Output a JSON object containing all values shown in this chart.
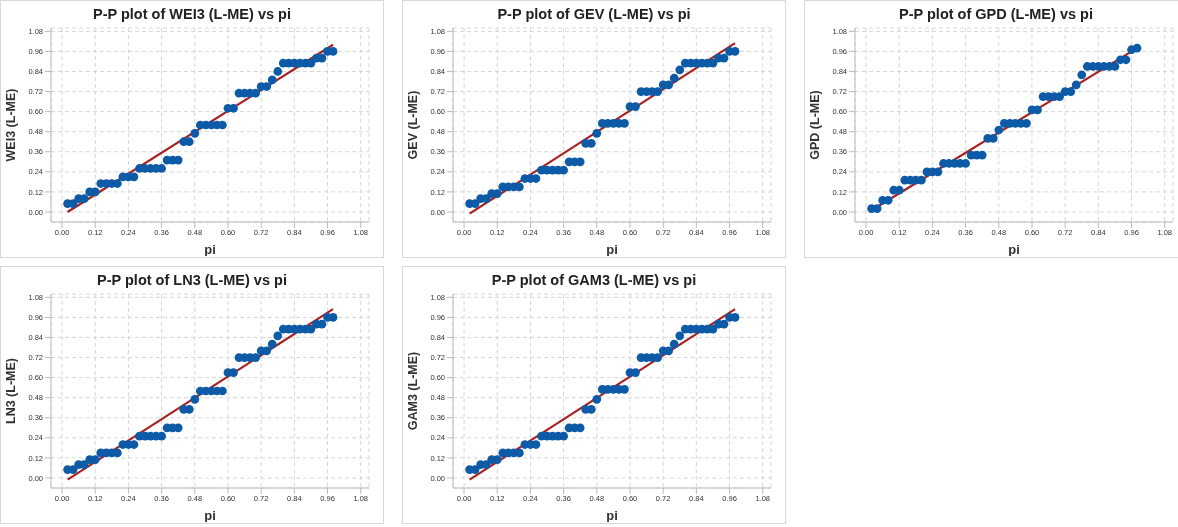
{
  "chart_data": [
    {
      "type": "scatter",
      "title": "P-P plot of WEI3 (L-ME) vs pi",
      "xlabel": "pi",
      "ylabel": "WEI3 (L-ME)",
      "grid": true,
      "xlim": [
        -0.04,
        1.11
      ],
      "ylim": [
        -0.06,
        1.1
      ],
      "xticks": [
        {
          "value": 0,
          "label": "0.00"
        },
        {
          "value": 0.12,
          "label": "0.12"
        },
        {
          "value": 0.24,
          "label": "0.24"
        },
        {
          "value": 0.36,
          "label": "0.36"
        },
        {
          "value": 0.48,
          "label": "0.48"
        },
        {
          "value": 0.6,
          "label": "0.60"
        },
        {
          "value": 0.72,
          "label": "0.72"
        },
        {
          "value": 0.84,
          "label": "0.84"
        },
        {
          "value": 0.96,
          "label": "0.96"
        },
        {
          "value": 1.08,
          "label": "1.08"
        }
      ],
      "yticks": [
        {
          "value": 0,
          "label": "0.00"
        },
        {
          "value": 0.12,
          "label": "0.12"
        },
        {
          "value": 0.24,
          "label": "0.24"
        },
        {
          "value": 0.36,
          "label": "0.36"
        },
        {
          "value": 0.48,
          "label": "0.48"
        },
        {
          "value": 0.6,
          "label": "0.60"
        },
        {
          "value": 0.72,
          "label": "0.72"
        },
        {
          "value": 0.84,
          "label": "0.84"
        },
        {
          "value": 0.96,
          "label": "0.96"
        },
        {
          "value": 1.08,
          "label": "1.08"
        }
      ],
      "series": [
        {
          "marker": "circle",
          "color": "#0d5aa7",
          "x": [
            0.02,
            0.04,
            0.06,
            0.08,
            0.1,
            0.12,
            0.14,
            0.16,
            0.18,
            0.2,
            0.22,
            0.24,
            0.26,
            0.28,
            0.3,
            0.32,
            0.34,
            0.36,
            0.38,
            0.4,
            0.42,
            0.44,
            0.46,
            0.48,
            0.5,
            0.52,
            0.54,
            0.56,
            0.58,
            0.6,
            0.62,
            0.64,
            0.66,
            0.68,
            0.7,
            0.72,
            0.74,
            0.76,
            0.78,
            0.8,
            0.82,
            0.84,
            0.86,
            0.88,
            0.9,
            0.92,
            0.94,
            0.96,
            0.98
          ],
          "values": [
            0.05,
            0.05,
            0.08,
            0.08,
            0.12,
            0.12,
            0.17,
            0.17,
            0.17,
            0.17,
            0.21,
            0.21,
            0.21,
            0.26,
            0.26,
            0.26,
            0.26,
            0.26,
            0.31,
            0.31,
            0.31,
            0.42,
            0.42,
            0.47,
            0.52,
            0.52,
            0.52,
            0.52,
            0.52,
            0.62,
            0.62,
            0.71,
            0.71,
            0.71,
            0.71,
            0.75,
            0.75,
            0.79,
            0.84,
            0.89,
            0.89,
            0.89,
            0.89,
            0.89,
            0.89,
            0.92,
            0.92,
            0.96,
            0.96
          ]
        },
        {
          "type": "line",
          "marker": "none",
          "color": "#a82020",
          "x": [
            0.02,
            0.98
          ],
          "values": [
            0,
            1
          ]
        }
      ]
    },
    {
      "type": "scatter",
      "title": "P-P plot of GEV (L-ME) vs pi",
      "xlabel": "pi",
      "ylabel": "GEV (L-ME)",
      "grid": true,
      "xlim": [
        -0.04,
        1.11
      ],
      "ylim": [
        -0.06,
        1.1
      ],
      "xticks": [
        {
          "value": 0,
          "label": "0.00"
        },
        {
          "value": 0.12,
          "label": "0.12"
        },
        {
          "value": 0.24,
          "label": "0.24"
        },
        {
          "value": 0.36,
          "label": "0.36"
        },
        {
          "value": 0.48,
          "label": "0.48"
        },
        {
          "value": 0.6,
          "label": "0.60"
        },
        {
          "value": 0.72,
          "label": "0.72"
        },
        {
          "value": 0.84,
          "label": "0.84"
        },
        {
          "value": 0.96,
          "label": "0.96"
        },
        {
          "value": 1.08,
          "label": "1.08"
        }
      ],
      "yticks": [
        {
          "value": 0,
          "label": "0.00"
        },
        {
          "value": 0.12,
          "label": "0.12"
        },
        {
          "value": 0.24,
          "label": "0.24"
        },
        {
          "value": 0.36,
          "label": "0.36"
        },
        {
          "value": 0.48,
          "label": "0.48"
        },
        {
          "value": 0.6,
          "label": "0.60"
        },
        {
          "value": 0.72,
          "label": "0.72"
        },
        {
          "value": 0.84,
          "label": "0.84"
        },
        {
          "value": 0.96,
          "label": "0.96"
        },
        {
          "value": 1.08,
          "label": "1.08"
        }
      ],
      "series": [
        {
          "color": "#0d5aa7",
          "x": [
            0.02,
            0.04,
            0.06,
            0.08,
            0.1,
            0.12,
            0.14,
            0.16,
            0.18,
            0.2,
            0.22,
            0.24,
            0.26,
            0.28,
            0.3,
            0.32,
            0.34,
            0.36,
            0.38,
            0.4,
            0.42,
            0.44,
            0.46,
            0.48,
            0.5,
            0.52,
            0.54,
            0.56,
            0.58,
            0.6,
            0.62,
            0.64,
            0.66,
            0.68,
            0.7,
            0.72,
            0.74,
            0.76,
            0.78,
            0.8,
            0.82,
            0.84,
            0.86,
            0.88,
            0.9,
            0.92,
            0.94,
            0.96,
            0.98
          ],
          "values": [
            0.05,
            0.05,
            0.08,
            0.08,
            0.11,
            0.11,
            0.15,
            0.15,
            0.15,
            0.15,
            0.2,
            0.2,
            0.2,
            0.25,
            0.25,
            0.25,
            0.25,
            0.25,
            0.3,
            0.3,
            0.3,
            0.41,
            0.41,
            0.47,
            0.53,
            0.53,
            0.53,
            0.53,
            0.53,
            0.63,
            0.63,
            0.72,
            0.72,
            0.72,
            0.72,
            0.76,
            0.76,
            0.8,
            0.85,
            0.89,
            0.89,
            0.89,
            0.89,
            0.89,
            0.89,
            0.92,
            0.92,
            0.96,
            0.96
          ],
          "marker": "circle"
        },
        {
          "type": "line",
          "marker": "none",
          "color": "#a82020",
          "x": [
            0.02,
            0.98
          ],
          "values": [
            -0.01,
            1.01
          ]
        }
      ]
    },
    {
      "type": "scatter",
      "title": "P-P plot of GPD (L-ME) vs pi",
      "xlabel": "pi",
      "ylabel": "GPD (L-ME)",
      "grid": true,
      "xlim": [
        -0.04,
        1.11
      ],
      "ylim": [
        -0.06,
        1.1
      ],
      "xticks": [
        {
          "value": 0,
          "label": "0.00"
        },
        {
          "value": 0.12,
          "label": "0.12"
        },
        {
          "value": 0.24,
          "label": "0.24"
        },
        {
          "value": 0.36,
          "label": "0.36"
        },
        {
          "value": 0.48,
          "label": "0.48"
        },
        {
          "value": 0.6,
          "label": "0.60"
        },
        {
          "value": 0.72,
          "label": "0.72"
        },
        {
          "value": 0.84,
          "label": "0.84"
        },
        {
          "value": 0.96,
          "label": "0.96"
        },
        {
          "value": 1.08,
          "label": "1.08"
        }
      ],
      "yticks": [
        {
          "value": 0,
          "label": "0.00"
        },
        {
          "value": 0.12,
          "label": "0.12"
        },
        {
          "value": 0.24,
          "label": "0.24"
        },
        {
          "value": 0.36,
          "label": "0.36"
        },
        {
          "value": 0.48,
          "label": "0.48"
        },
        {
          "value": 0.6,
          "label": "0.60"
        },
        {
          "value": 0.72,
          "label": "0.72"
        },
        {
          "value": 0.84,
          "label": "0.84"
        },
        {
          "value": 0.96,
          "label": "0.96"
        },
        {
          "value": 1.08,
          "label": "1.08"
        }
      ],
      "series": [
        {
          "color": "#0d5aa7",
          "x": [
            0.02,
            0.04,
            0.06,
            0.08,
            0.1,
            0.12,
            0.14,
            0.16,
            0.18,
            0.2,
            0.22,
            0.24,
            0.26,
            0.28,
            0.3,
            0.32,
            0.34,
            0.36,
            0.38,
            0.4,
            0.42,
            0.44,
            0.46,
            0.48,
            0.5,
            0.52,
            0.54,
            0.56,
            0.58,
            0.6,
            0.62,
            0.64,
            0.66,
            0.68,
            0.7,
            0.72,
            0.74,
            0.76,
            0.78,
            0.8,
            0.82,
            0.84,
            0.86,
            0.88,
            0.9,
            0.92,
            0.94,
            0.96,
            0.98
          ],
          "values": [
            0.02,
            0.02,
            0.07,
            0.07,
            0.13,
            0.13,
            0.19,
            0.19,
            0.19,
            0.19,
            0.24,
            0.24,
            0.24,
            0.29,
            0.29,
            0.29,
            0.29,
            0.29,
            0.34,
            0.34,
            0.34,
            0.44,
            0.44,
            0.49,
            0.53,
            0.53,
            0.53,
            0.53,
            0.53,
            0.61,
            0.61,
            0.69,
            0.69,
            0.69,
            0.69,
            0.72,
            0.72,
            0.76,
            0.82,
            0.87,
            0.87,
            0.87,
            0.87,
            0.87,
            0.87,
            0.91,
            0.91,
            0.97,
            0.98
          ],
          "marker": "circle"
        },
        {
          "type": "line",
          "marker": "none",
          "color": "#a82020",
          "x": [
            0.02,
            0.98
          ],
          "values": [
            0.01,
            0.98
          ]
        }
      ]
    },
    {
      "type": "scatter",
      "title": "P-P plot of LN3 (L-ME) vs pi",
      "xlabel": "pi",
      "ylabel": "LN3 (L-ME)",
      "grid": true,
      "xlim": [
        -0.04,
        1.11
      ],
      "ylim": [
        -0.06,
        1.1
      ],
      "xticks": [
        {
          "value": 0,
          "label": "0.00"
        },
        {
          "value": 0.12,
          "label": "0.12"
        },
        {
          "value": 0.24,
          "label": "0.24"
        },
        {
          "value": 0.36,
          "label": "0.36"
        },
        {
          "value": 0.48,
          "label": "0.48"
        },
        {
          "value": 0.6,
          "label": "0.60"
        },
        {
          "value": 0.72,
          "label": "0.72"
        },
        {
          "value": 0.84,
          "label": "0.84"
        },
        {
          "value": 0.96,
          "label": "0.96"
        },
        {
          "value": 1.08,
          "label": "1.08"
        }
      ],
      "yticks": [
        {
          "value": 0,
          "label": "0.00"
        },
        {
          "value": 0.12,
          "label": "0.12"
        },
        {
          "value": 0.24,
          "label": "0.24"
        },
        {
          "value": 0.36,
          "label": "0.36"
        },
        {
          "value": 0.48,
          "label": "0.48"
        },
        {
          "value": 0.6,
          "label": "0.60"
        },
        {
          "value": 0.72,
          "label": "0.72"
        },
        {
          "value": 0.84,
          "label": "0.84"
        },
        {
          "value": 0.96,
          "label": "0.96"
        },
        {
          "value": 1.08,
          "label": "1.08"
        }
      ],
      "series": [
        {
          "color": "#0d5aa7",
          "x": [
            0.02,
            0.04,
            0.06,
            0.08,
            0.1,
            0.12,
            0.14,
            0.16,
            0.18,
            0.2,
            0.22,
            0.24,
            0.26,
            0.28,
            0.3,
            0.32,
            0.34,
            0.36,
            0.38,
            0.4,
            0.42,
            0.44,
            0.46,
            0.48,
            0.5,
            0.52,
            0.54,
            0.56,
            0.58,
            0.6,
            0.62,
            0.64,
            0.66,
            0.68,
            0.7,
            0.72,
            0.74,
            0.76,
            0.78,
            0.8,
            0.82,
            0.84,
            0.86,
            0.88,
            0.9,
            0.92,
            0.94,
            0.96,
            0.98
          ],
          "values": [
            0.05,
            0.05,
            0.08,
            0.08,
            0.11,
            0.11,
            0.15,
            0.15,
            0.15,
            0.15,
            0.2,
            0.2,
            0.2,
            0.25,
            0.25,
            0.25,
            0.25,
            0.25,
            0.3,
            0.3,
            0.3,
            0.41,
            0.41,
            0.47,
            0.52,
            0.52,
            0.52,
            0.52,
            0.52,
            0.63,
            0.63,
            0.72,
            0.72,
            0.72,
            0.72,
            0.76,
            0.76,
            0.8,
            0.85,
            0.89,
            0.89,
            0.89,
            0.89,
            0.89,
            0.89,
            0.92,
            0.92,
            0.96,
            0.96
          ],
          "marker": "circle"
        },
        {
          "type": "line",
          "marker": "none",
          "color": "#a82020",
          "x": [
            0.02,
            0.98
          ],
          "values": [
            -0.01,
            1.01
          ]
        }
      ]
    },
    {
      "type": "scatter",
      "title": "P-P plot of GAM3 (L-ME) vs pi",
      "xlabel": "pi",
      "ylabel": "GAM3 (L-ME)",
      "grid": true,
      "xlim": [
        -0.04,
        1.11
      ],
      "ylim": [
        -0.06,
        1.1
      ],
      "xticks": [
        {
          "value": 0,
          "label": "0.00"
        },
        {
          "value": 0.12,
          "label": "0.12"
        },
        {
          "value": 0.24,
          "label": "0.24"
        },
        {
          "value": 0.36,
          "label": "0.36"
        },
        {
          "value": 0.48,
          "label": "0.48"
        },
        {
          "value": 0.6,
          "label": "0.60"
        },
        {
          "value": 0.72,
          "label": "0.72"
        },
        {
          "value": 0.84,
          "label": "0.84"
        },
        {
          "value": 0.96,
          "label": "0.96"
        },
        {
          "value": 1.08,
          "label": "1.08"
        }
      ],
      "yticks": [
        {
          "value": 0,
          "label": "0.00"
        },
        {
          "value": 0.12,
          "label": "0.12"
        },
        {
          "value": 0.24,
          "label": "0.24"
        },
        {
          "value": 0.36,
          "label": "0.36"
        },
        {
          "value": 0.48,
          "label": "0.48"
        },
        {
          "value": 0.6,
          "label": "0.60"
        },
        {
          "value": 0.72,
          "label": "0.72"
        },
        {
          "value": 0.84,
          "label": "0.84"
        },
        {
          "value": 0.96,
          "label": "0.96"
        },
        {
          "value": 1.08,
          "label": "1.08"
        }
      ],
      "series": [
        {
          "color": "#0d5aa7",
          "x": [
            0.02,
            0.04,
            0.06,
            0.08,
            0.1,
            0.12,
            0.14,
            0.16,
            0.18,
            0.2,
            0.22,
            0.24,
            0.26,
            0.28,
            0.3,
            0.32,
            0.34,
            0.36,
            0.38,
            0.4,
            0.42,
            0.44,
            0.46,
            0.48,
            0.5,
            0.52,
            0.54,
            0.56,
            0.58,
            0.6,
            0.62,
            0.64,
            0.66,
            0.68,
            0.7,
            0.72,
            0.74,
            0.76,
            0.78,
            0.8,
            0.82,
            0.84,
            0.86,
            0.88,
            0.9,
            0.92,
            0.94,
            0.96,
            0.98
          ],
          "values": [
            0.05,
            0.05,
            0.08,
            0.08,
            0.11,
            0.11,
            0.15,
            0.15,
            0.15,
            0.15,
            0.2,
            0.2,
            0.2,
            0.25,
            0.25,
            0.25,
            0.25,
            0.25,
            0.3,
            0.3,
            0.3,
            0.41,
            0.41,
            0.47,
            0.53,
            0.53,
            0.53,
            0.53,
            0.53,
            0.63,
            0.63,
            0.72,
            0.72,
            0.72,
            0.72,
            0.76,
            0.76,
            0.8,
            0.85,
            0.89,
            0.89,
            0.89,
            0.89,
            0.89,
            0.89,
            0.92,
            0.92,
            0.96,
            0.96
          ],
          "marker": "circle"
        },
        {
          "type": "line",
          "marker": "none",
          "color": "#a82020",
          "x": [
            0.02,
            0.98
          ],
          "values": [
            -0.01,
            1.01
          ]
        }
      ]
    }
  ]
}
